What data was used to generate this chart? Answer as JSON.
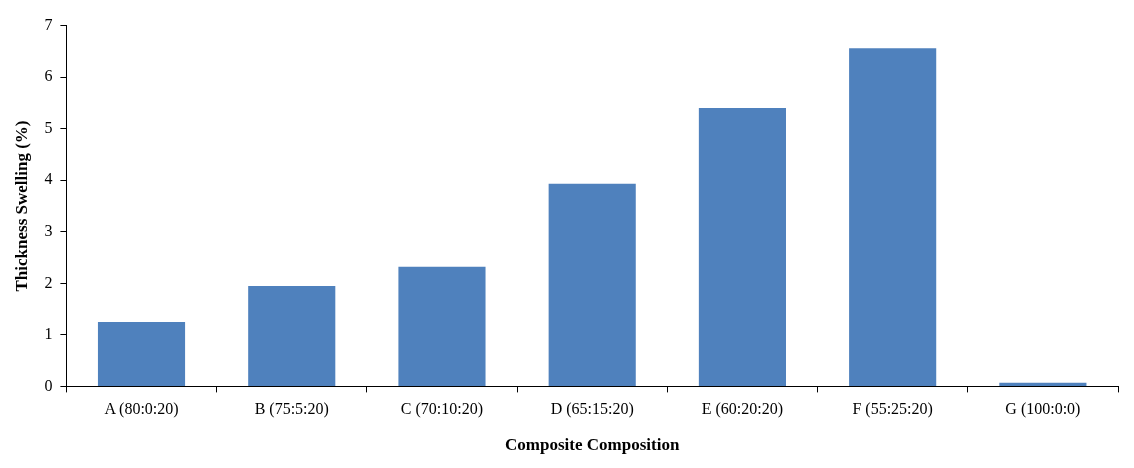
{
  "chart_data": {
    "type": "bar",
    "xlabel": "Composite Composition",
    "ylabel": "Thickness Swelling (%)",
    "categories": [
      "A (80:0:20)",
      "B (75:5:20)",
      "C (70:10:20)",
      "D (65:15:20)",
      "E (60:20:20)",
      "F (55:25:20)",
      "G (100:0:0)"
    ],
    "values": [
      1.25,
      1.95,
      2.32,
      3.93,
      5.4,
      6.56,
      0.07
    ],
    "color": "#4f81bd",
    "ylim": [
      0,
      7
    ],
    "yticks": [
      0,
      1,
      2,
      3,
      4,
      5,
      6,
      7
    ],
    "grid": false,
    "legend": false
  }
}
